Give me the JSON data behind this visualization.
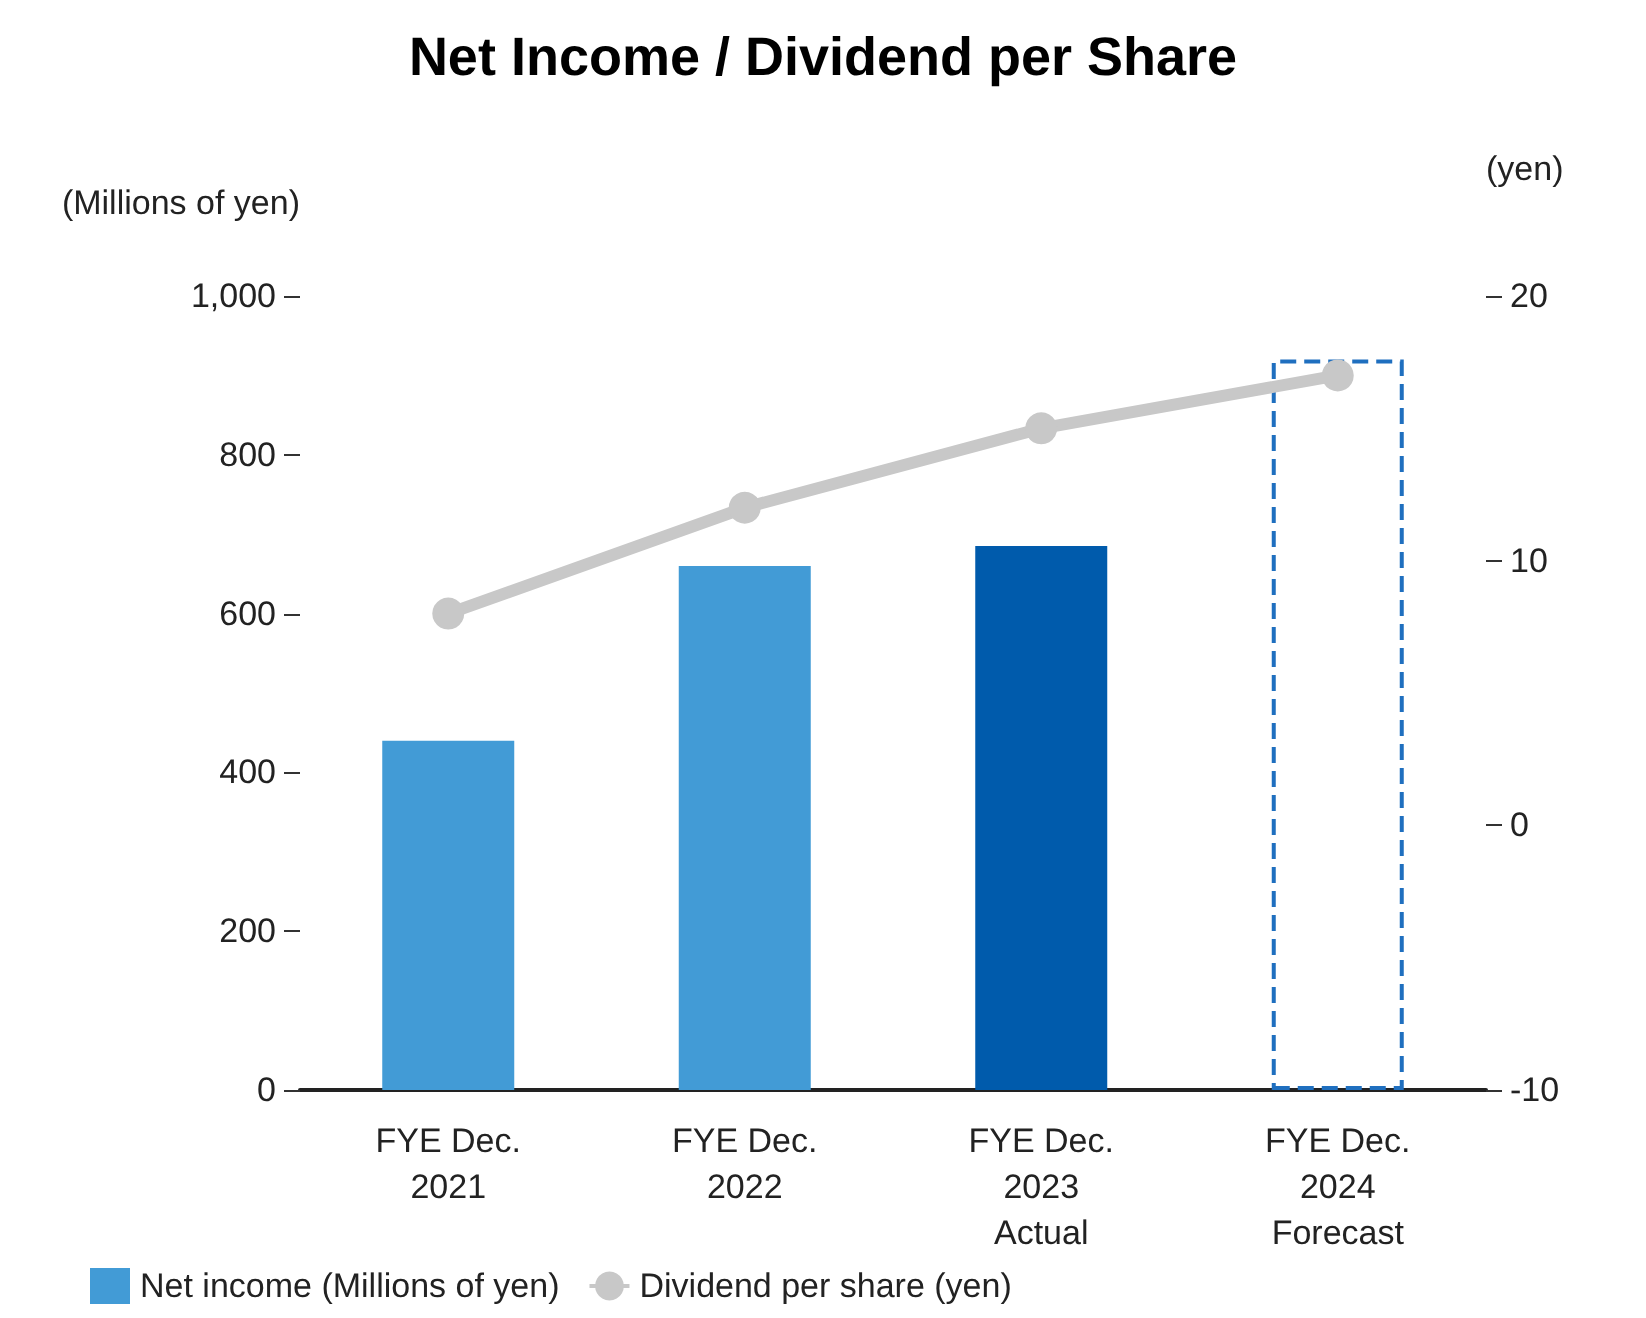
{
  "chart_data": {
    "type": "bar",
    "title": "Net Income / Dividend per Share",
    "ylabel": "(Millions of yen)",
    "y2label": "(yen)",
    "categories": [
      "FYE Dec.\n2021",
      "FYE Dec.\n2022",
      "FYE Dec.\n2023\nActual",
      "FYE Dec.\n2024\nForecast"
    ],
    "series": [
      {
        "name": "Net income (Millions of yen)",
        "colors": [
          "#429bd6",
          "#429bd6",
          "#005bac",
          "#1f6fbf"
        ],
        "line_style": [
          "solid",
          "solid",
          "solid",
          "dashed"
        ],
        "values": [
          440,
          660,
          685,
          920
        ]
      },
      {
        "type": "line",
        "name": "Dividend per share (yen)",
        "color": "#c8c8c8",
        "axis": "y2",
        "marker": "circle",
        "values": [
          8,
          12,
          15,
          17
        ]
      }
    ],
    "ylim": [
      0,
      1000
    ],
    "yticks": [
      0,
      200,
      400,
      600,
      800,
      {
        "value": 1000,
        "label": "1,000"
      }
    ],
    "y2lim": [
      -10,
      20
    ],
    "y2ticks": [
      -10,
      0,
      10,
      20
    ],
    "grid": false,
    "legend": "bottom left"
  }
}
